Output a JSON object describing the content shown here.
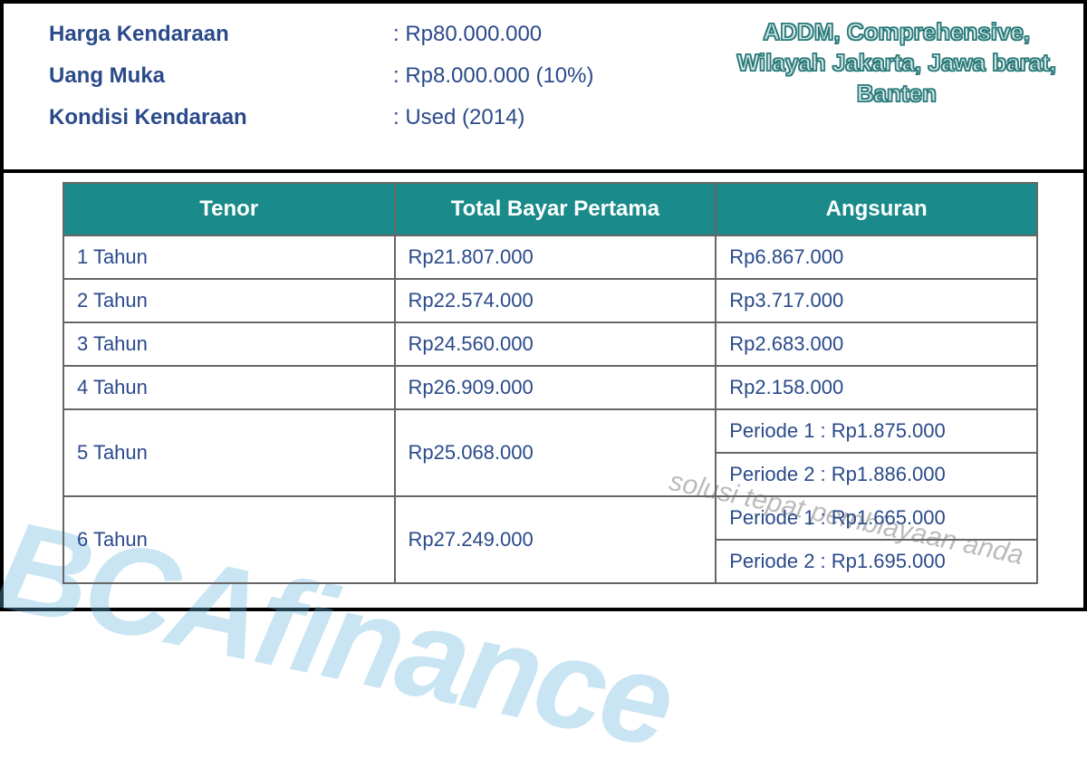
{
  "colors": {
    "header_bg": "#1a8a8a",
    "header_text": "#ffffff",
    "border": "#666666",
    "outer_border": "#000000",
    "label_text": "#2a4a8a",
    "cell_text": "#2a4a8a",
    "watermark": "rgba(100,180,220,0.35)",
    "overlay_fill": "#d8e8e8",
    "overlay_stroke": "#2a7a7a"
  },
  "info": {
    "rows": [
      {
        "label": "Harga Kendaraan",
        "value": ": Rp80.000.000"
      },
      {
        "label": "Uang Muka",
        "value": ": Rp8.000.000 (10%)"
      },
      {
        "label": "Kondisi Kendaraan",
        "value": ": Used (2014)"
      }
    ]
  },
  "overlay": {
    "line1": "ADDM, Comprehensive,",
    "line2": "Wilayah Jakarta, Jawa barat,",
    "line3": "Banten"
  },
  "watermark": {
    "main": "BCAfinance",
    "tagline": "solusi tepat pembiayaan anda"
  },
  "table": {
    "headers": {
      "tenor": "Tenor",
      "total": "Total Bayar Pertama",
      "angsuran": "Angsuran"
    },
    "rows": {
      "r1": {
        "tenor": "1 Tahun",
        "total": "Rp21.807.000",
        "angsuran": "Rp6.867.000"
      },
      "r2": {
        "tenor": "2 Tahun",
        "total": "Rp22.574.000",
        "angsuran": "Rp3.717.000"
      },
      "r3": {
        "tenor": "3 Tahun",
        "total": "Rp24.560.000",
        "angsuran": "Rp2.683.000"
      },
      "r4": {
        "tenor": "4 Tahun",
        "total": "Rp26.909.000",
        "angsuran": "Rp2.158.000"
      },
      "r5": {
        "tenor": "5 Tahun",
        "total": "Rp25.068.000",
        "p1": "Periode 1 : Rp1.875.000",
        "p2": "Periode 2 : Rp1.886.000"
      },
      "r6": {
        "tenor": "6 Tahun",
        "total": "Rp27.249.000",
        "p1": "Periode 1 : Rp1.665.000",
        "p2": "Periode 2 : Rp1.695.000"
      }
    }
  }
}
